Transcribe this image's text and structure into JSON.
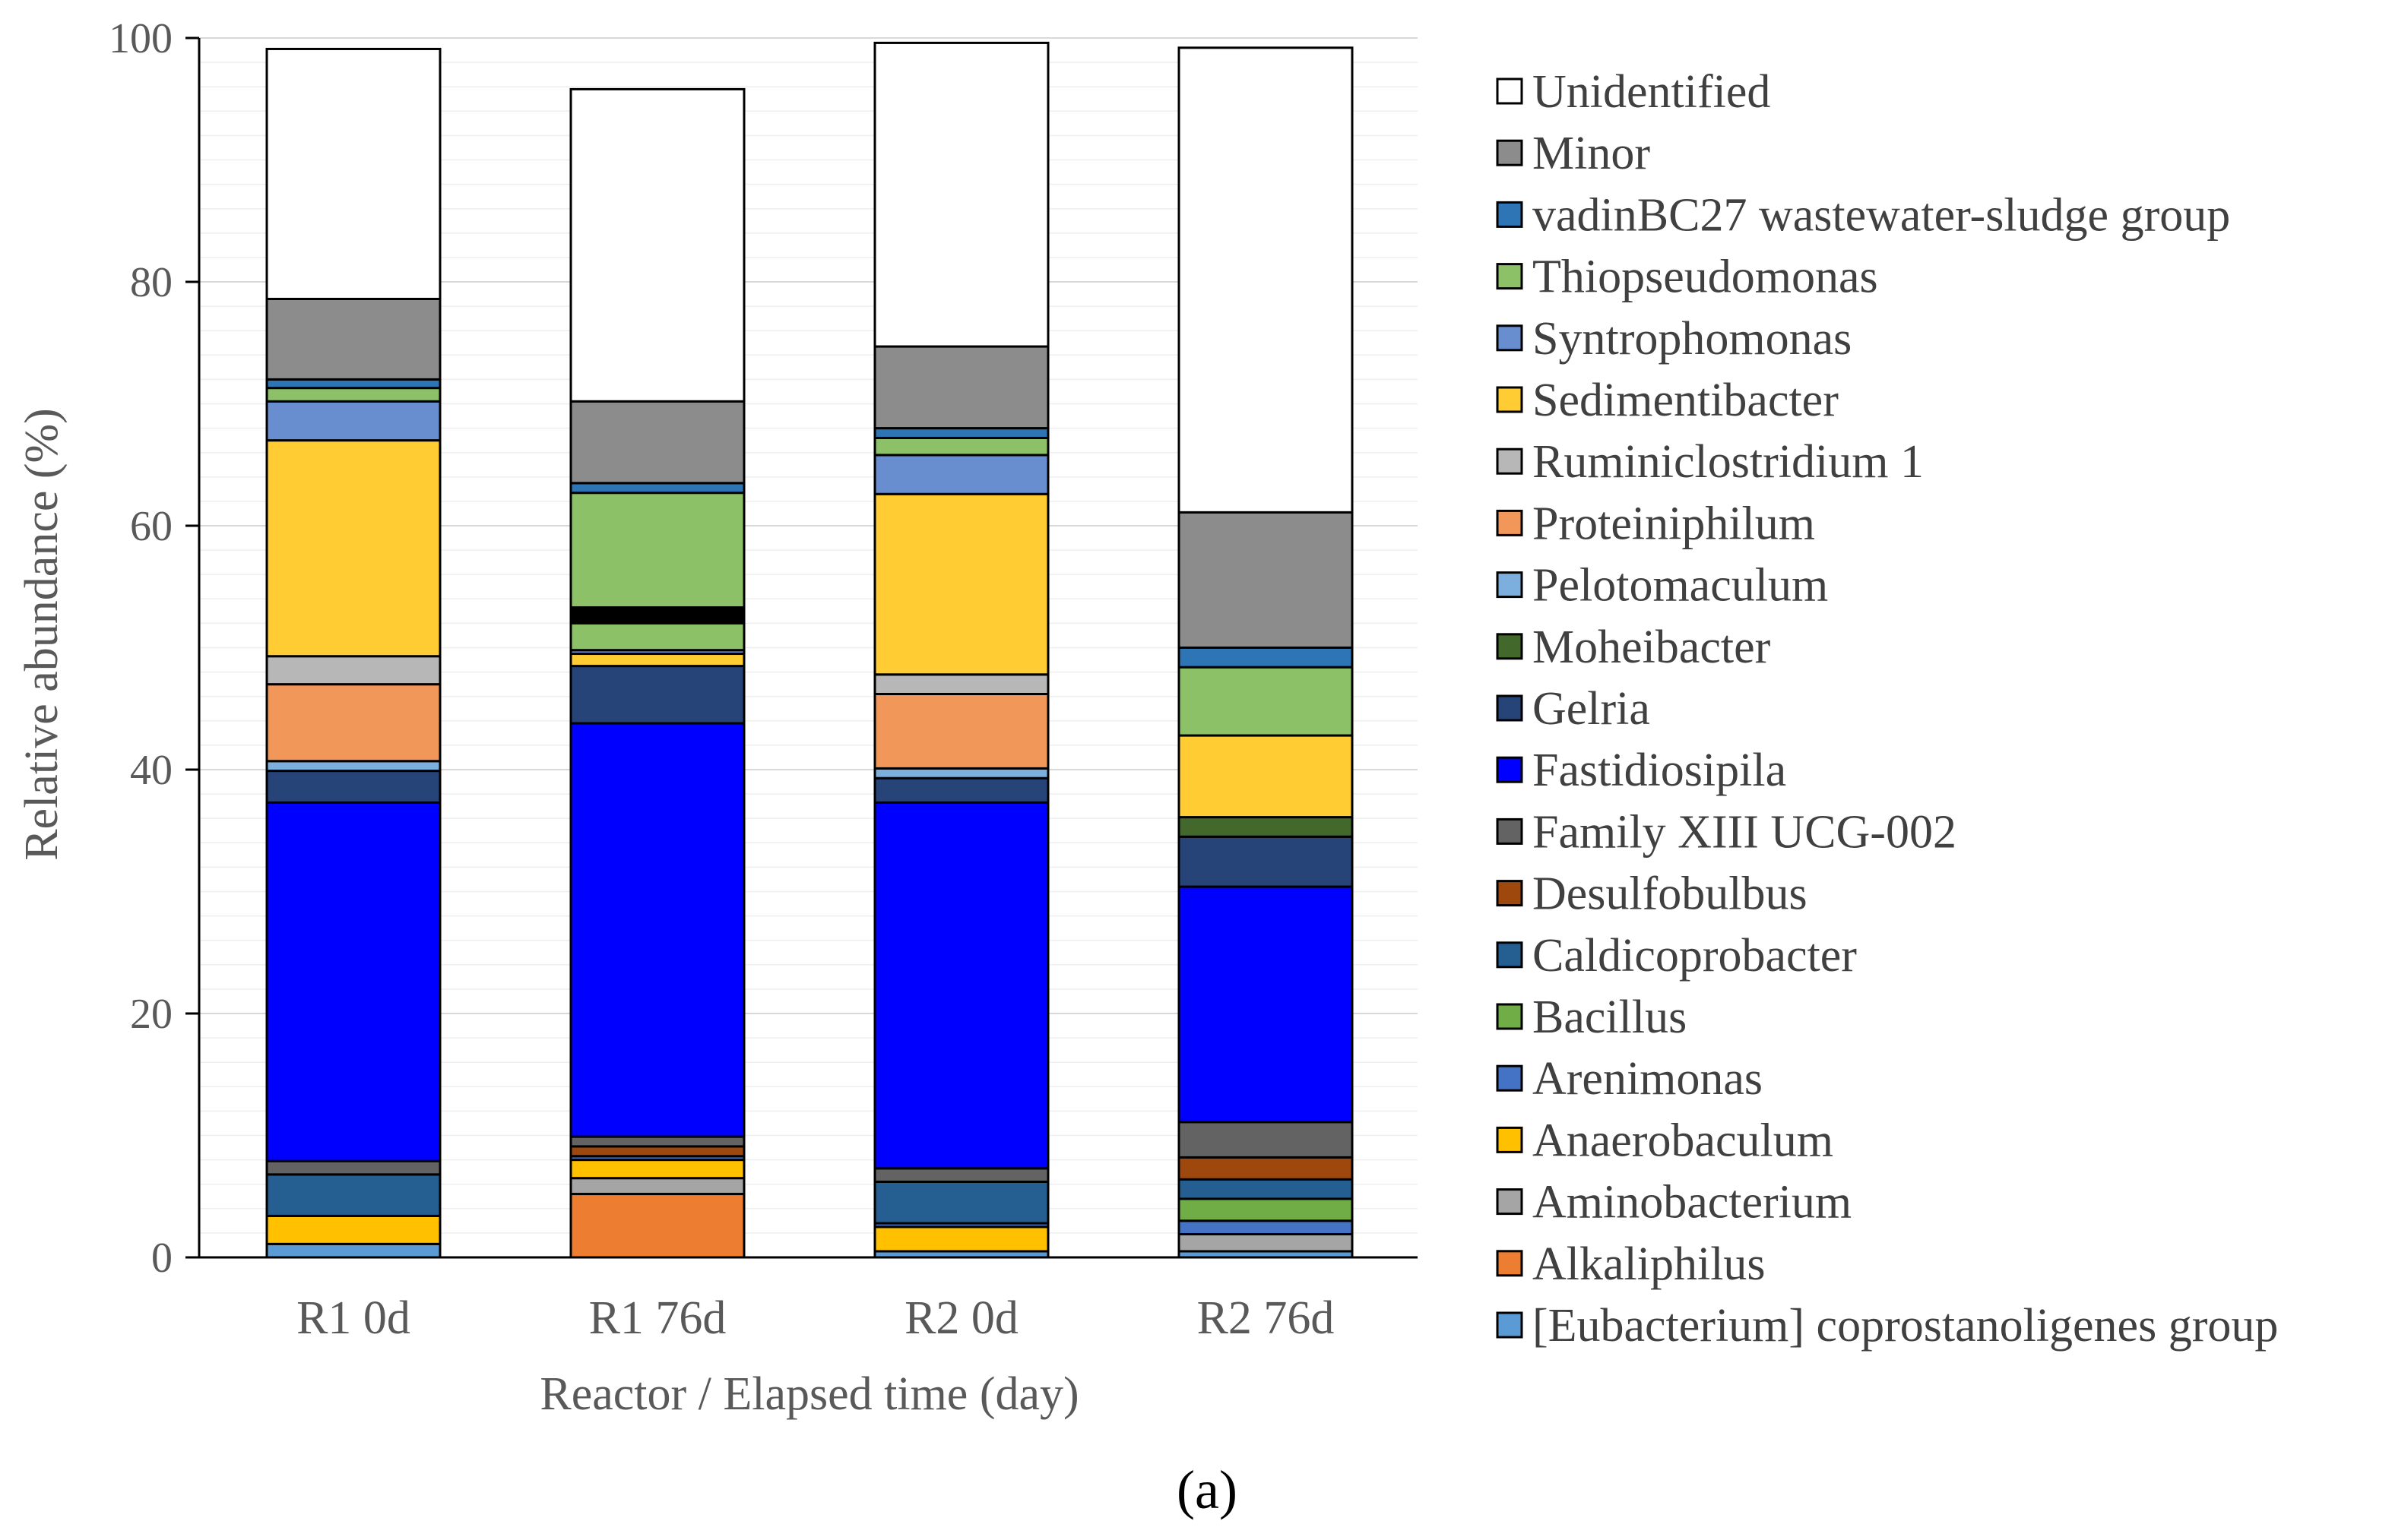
{
  "chart_data": {
    "type": "bar",
    "stacked": true,
    "categories": [
      "R1 0d",
      "R1 76d",
      "R2 0d",
      "R2 76d"
    ],
    "xlabel": "Reactor / Elapsed time (day)",
    "ylabel": "Relative abundance (%)",
    "ylim": [
      0,
      100
    ],
    "yticks": [
      0,
      20,
      40,
      60,
      80,
      100
    ],
    "grid": true,
    "legend_position": "right",
    "panel_label": "(a)",
    "series": [
      {
        "name": "[Eubacterium] coprostanoligenes group",
        "color": "#5B9BD5",
        "values": [
          1.1,
          0.0,
          0.5,
          0.5
        ]
      },
      {
        "name": "Alkaliphilus",
        "color": "#ED7D31",
        "values": [
          0.0,
          5.2,
          0.0,
          0.0
        ]
      },
      {
        "name": "Aminobacterium",
        "color": "#A5A5A5",
        "values": [
          0.0,
          1.3,
          0.0,
          1.4
        ]
      },
      {
        "name": "Anaerobaculum",
        "color": "#FFC000",
        "values": [
          2.3,
          1.5,
          2.0,
          0.0
        ]
      },
      {
        "name": "Arenimonas",
        "color": "#4472C4",
        "values": [
          0.0,
          0.3,
          0.3,
          1.1
        ]
      },
      {
        "name": "Bacillus",
        "color": "#70AD47",
        "values": [
          0.0,
          0.0,
          0.0,
          1.8
        ]
      },
      {
        "name": "Caldicoprobacter",
        "color": "#255E91",
        "values": [
          3.4,
          0.0,
          3.4,
          1.6
        ]
      },
      {
        "name": "Desulfobulbus",
        "color": "#9E480E",
        "values": [
          0.0,
          0.8,
          0.0,
          1.8
        ]
      },
      {
        "name": "Family XIII UCG-002",
        "color": "#636363",
        "values": [
          1.1,
          0.8,
          1.1,
          2.9
        ]
      },
      {
        "name": "Fastidiosipila",
        "color": "#0000FF",
        "values": [
          29.4,
          33.9,
          30.0,
          19.3
        ]
      },
      {
        "name": "Gelria",
        "color": "#264478",
        "values": [
          2.6,
          4.7,
          2.0,
          4.1
        ]
      },
      {
        "name": "Moheibacter",
        "color": "#43682B",
        "values": [
          0.0,
          0.0,
          0.0,
          1.6
        ]
      },
      {
        "name": "Pelotomaculum",
        "color": "#7CAFDD",
        "values": [
          0.8,
          0.0,
          0.8,
          0.0
        ]
      },
      {
        "name": "Proteiniphilum",
        "color": "#F1975A",
        "values": [
          6.3,
          0.0,
          6.1,
          0.0
        ]
      },
      {
        "name": "Ruminiclostridium 1",
        "color": "#B7B7B7",
        "values": [
          2.3,
          0.0,
          1.6,
          0.0
        ]
      },
      {
        "name": "Sedimentibacter",
        "color": "#FFCD33",
        "values": [
          17.7,
          1.0,
          14.8,
          6.7
        ]
      },
      {
        "name": "Syntrophomonas",
        "color": "#698ED0",
        "values": [
          3.2,
          0.3,
          3.2,
          0.0
        ]
      },
      {
        "name": "Thiopseudomonas",
        "color": "#8CC168",
        "values": [
          1.1,
          12.9,
          1.4,
          5.6
        ]
      },
      {
        "name": "vadinBC27 wastewater-sludge group",
        "color": "#2E75B6",
        "values": [
          0.7,
          0.8,
          0.8,
          1.6
        ]
      },
      {
        "name": "Minor",
        "color": "#8C8C8C",
        "values": [
          6.6,
          6.7,
          6.7,
          11.1
        ]
      },
      {
        "name": "Unidentified",
        "color": "#FFFFFF",
        "values": [
          20.5,
          25.6,
          24.9,
          38.1
        ]
      }
    ],
    "extra_segments": [
      {
        "category": "R1 76d",
        "from": 52.0,
        "to": 53.3,
        "color": "#000000"
      }
    ]
  }
}
